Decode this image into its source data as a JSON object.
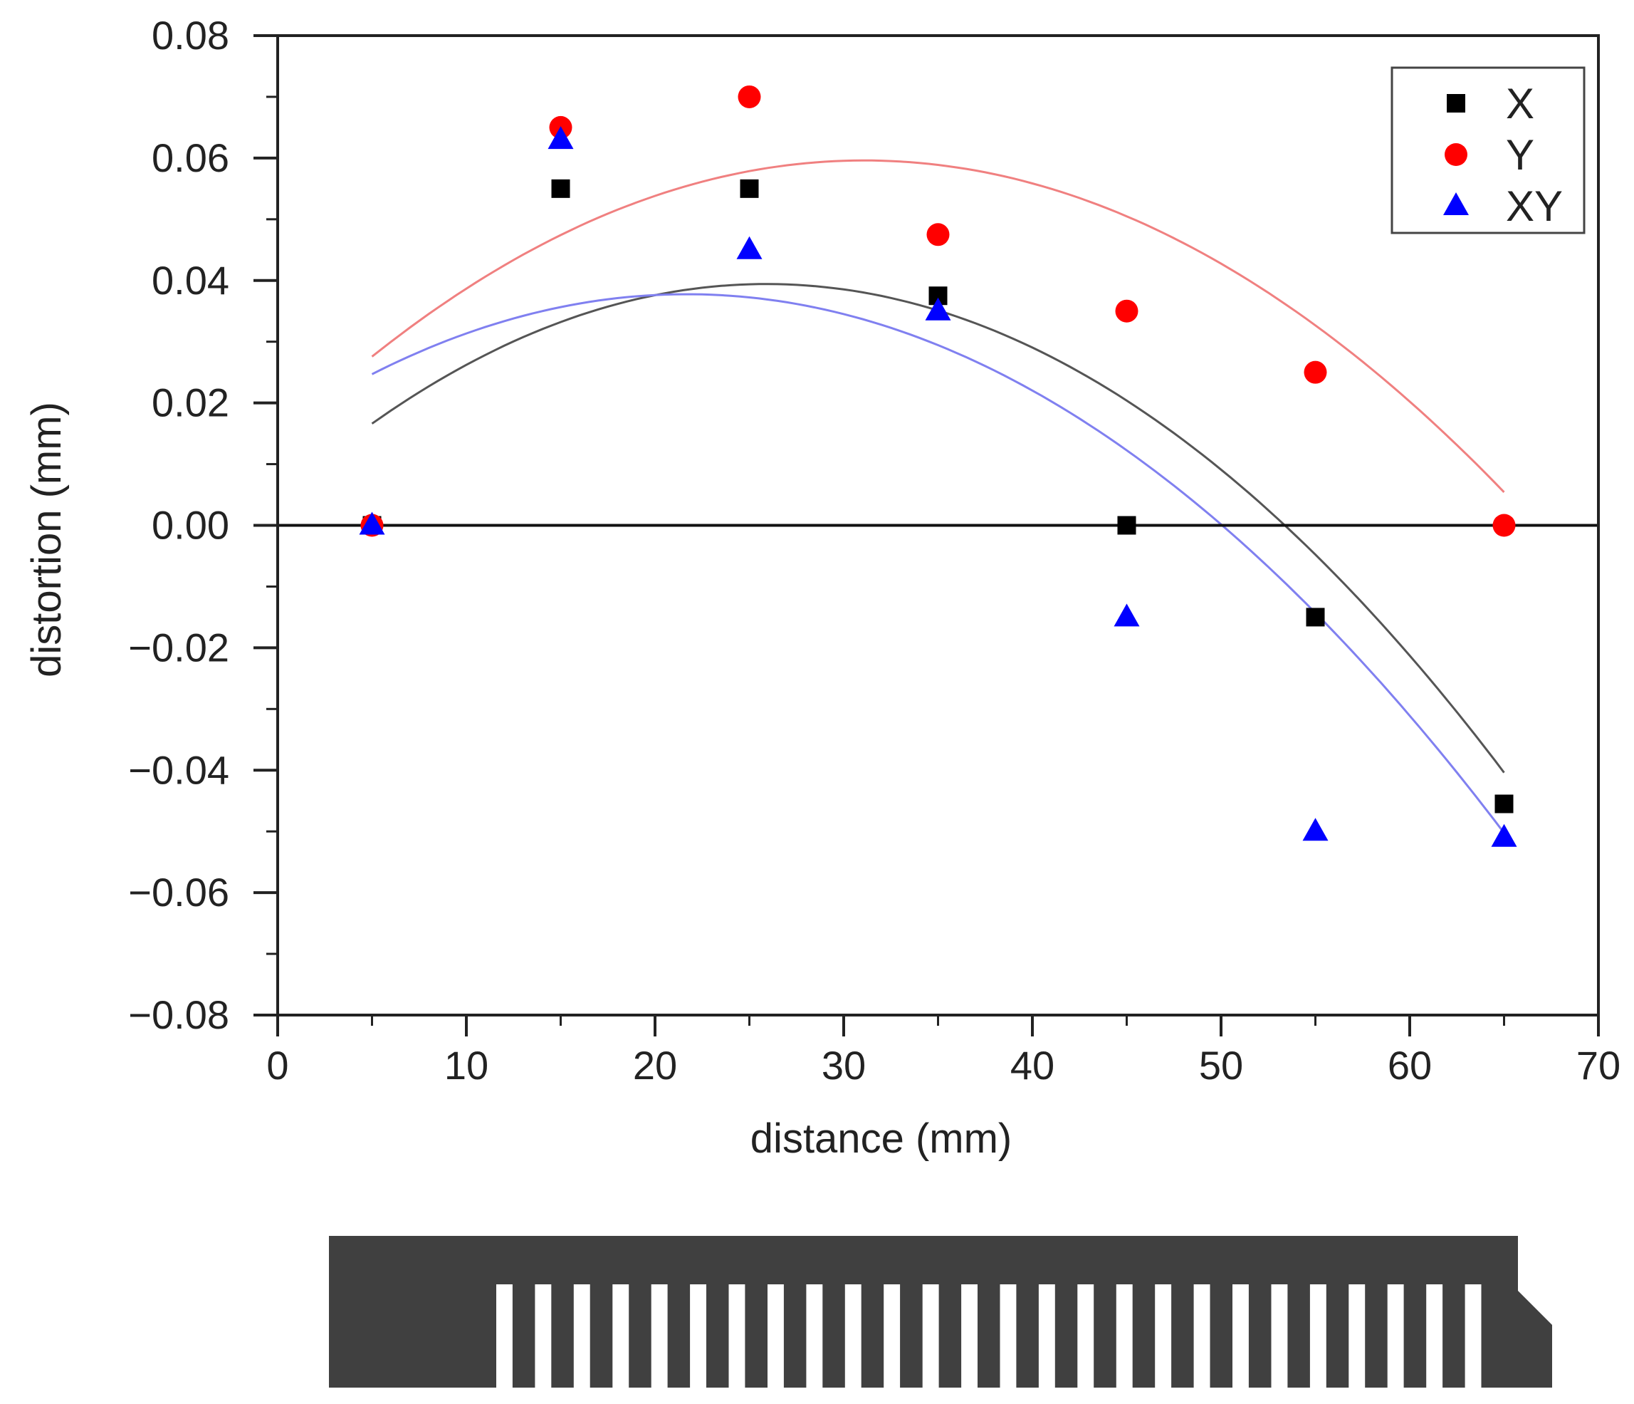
{
  "chart_data": {
    "type": "scatter",
    "xlabel": "distance (mm)",
    "ylabel": "distortion (mm)",
    "xlim": [
      0,
      70
    ],
    "ylim": [
      -0.08,
      0.08
    ],
    "x_ticks": [
      0,
      10,
      20,
      30,
      40,
      50,
      60,
      70
    ],
    "x_tick_labels": [
      "0",
      "10",
      "20",
      "30",
      "40",
      "50",
      "60",
      "70"
    ],
    "y_ticks": [
      0.08,
      0.06,
      0.04,
      0.02,
      0.0,
      -0.02,
      -0.04,
      -0.06,
      -0.08
    ],
    "y_tick_labels": [
      "0.08",
      "0.06",
      "0.04",
      "0.02",
      "0.00",
      "−0.02",
      "−0.04",
      "−0.06",
      "−0.08"
    ],
    "grid": false,
    "zero_line": true,
    "legend_position": "top-right",
    "series": [
      {
        "name": "X",
        "marker": "square",
        "color": "#000000",
        "x": [
          5,
          15,
          25,
          35,
          45,
          55,
          65
        ],
        "y": [
          0.0,
          0.055,
          0.055,
          0.0375,
          0.0,
          -0.015,
          -0.0455
        ],
        "fit": {
          "type": "quadratic",
          "color": "#555555",
          "x_range": [
            5,
            65
          ],
          "coefficients": [
            -5.22e-05,
            0.002704,
            0.0044
          ]
        }
      },
      {
        "name": "Y",
        "marker": "circle",
        "color": "#ff0000",
        "x": [
          5,
          15,
          25,
          35,
          45,
          55,
          65
        ],
        "y": [
          0.0,
          0.065,
          0.07,
          0.0475,
          0.035,
          0.025,
          0.0
        ],
        "fit": {
          "type": "quadratic",
          "color": "#f08080",
          "x_range": [
            5,
            65
          ],
          "coefficients": [
            -4.71e-05,
            0.002928,
            0.0141
          ]
        }
      },
      {
        "name": "XY",
        "marker": "triangle",
        "color": "#0000ff",
        "x": [
          5,
          15,
          25,
          35,
          45,
          55,
          65
        ],
        "y": [
          0.0,
          0.063,
          0.045,
          0.035,
          -0.015,
          -0.05,
          -0.051
        ],
        "fit": {
          "type": "quadratic",
          "color": "#8080f0",
          "x_range": [
            5,
            65
          ],
          "coefficients": [
            -4.69e-05,
            0.002034,
            0.0157
          ]
        }
      }
    ]
  },
  "sample_graphic": {
    "description_icon": "comb-specimen-icon",
    "color": "#404040",
    "tooth_count": 26
  }
}
